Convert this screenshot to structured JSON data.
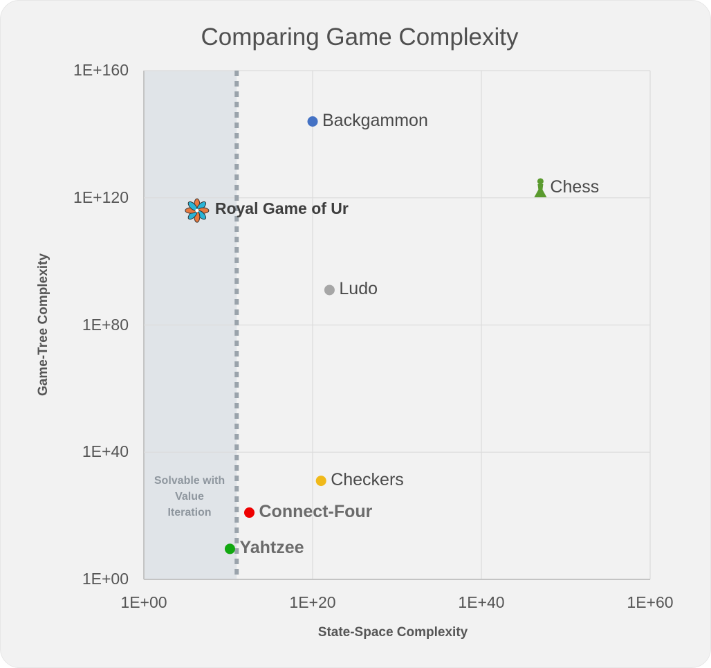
{
  "chart_data": {
    "type": "scatter",
    "title": "Comparing Game Complexity",
    "xlabel": "State-Space Complexity",
    "ylabel": "Game-Tree Complexity",
    "x_scale": "log10",
    "y_scale": "log10",
    "xlim": [
      1,
      1e+60
    ],
    "ylim": [
      1,
      1e+160
    ],
    "x_ticks": [
      "1E+00",
      "1E+20",
      "1E+40",
      "1E+60"
    ],
    "y_ticks": [
      "1E+00",
      "1E+40",
      "1E+80",
      "1E+120",
      "1E+160"
    ],
    "grid": true,
    "region": {
      "label": "Solvable with Value Iteration",
      "x_max_exponent": 11,
      "color": "#e0e4e8",
      "line_color": "#9aa3ab"
    },
    "points": [
      {
        "name": "Backgammon",
        "x_exp": 20,
        "y_exp": 144,
        "color": "#4472c4",
        "marker": "circle",
        "style": "normal"
      },
      {
        "name": "Chess",
        "x_exp": 47,
        "y_exp": 123,
        "color": "#5a9a2e",
        "marker": "pawn",
        "style": "normal"
      },
      {
        "name": "Royal Game of Ur",
        "x_exp": 6.3,
        "y_exp": 116,
        "color": "#e8793f",
        "marker": "rosette",
        "style": "highlight"
      },
      {
        "name": "Ludo",
        "x_exp": 22,
        "y_exp": 91,
        "color": "#a6a6a6",
        "marker": "circle",
        "style": "normal"
      },
      {
        "name": "Checkers",
        "x_exp": 21,
        "y_exp": 31,
        "color": "#f0b91a",
        "marker": "circle",
        "style": "normal"
      },
      {
        "name": "Connect-Four",
        "x_exp": 12.5,
        "y_exp": 21,
        "color": "#ee0000",
        "marker": "circle",
        "style": "bold"
      },
      {
        "name": "Yahtzee",
        "x_exp": 10.2,
        "y_exp": 9.6,
        "color": "#11a811",
        "marker": "circle",
        "style": "bold"
      }
    ]
  }
}
